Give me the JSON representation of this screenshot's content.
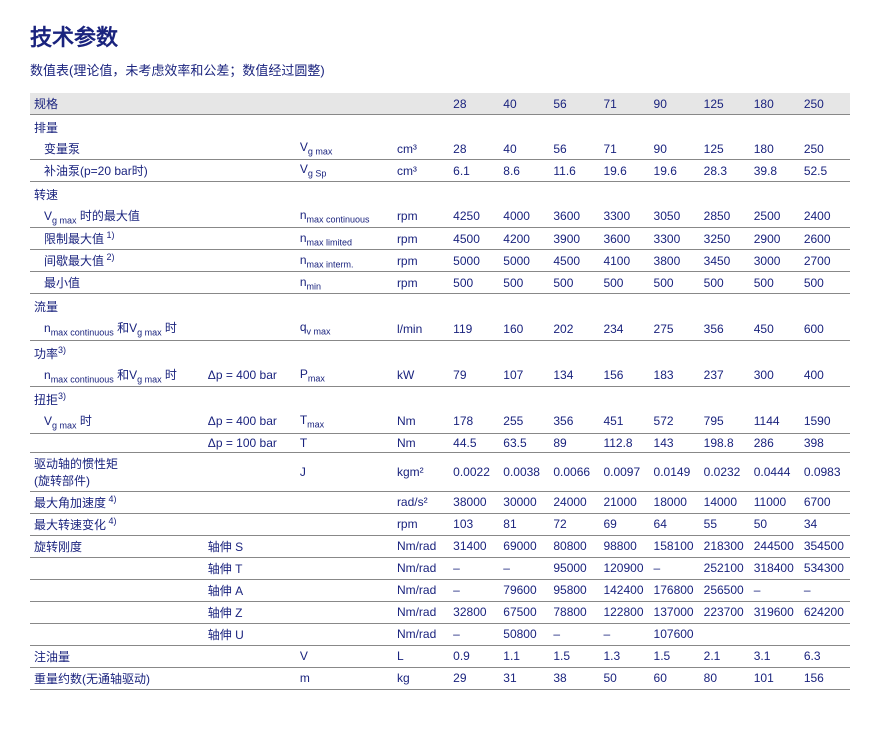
{
  "title": "技术参数",
  "subtitle": "数值表(理论值，未考虑效率和公差；数值经过圆整)",
  "header_label": "规格",
  "sizes": [
    "28",
    "40",
    "56",
    "71",
    "90",
    "125",
    "180",
    "250"
  ],
  "sections": {
    "disp": "排量",
    "speed": "转速",
    "flow": "流量",
    "power": "功率",
    "torque": "扭拒",
    "inertia1": "驱动轴的惯性矩",
    "inertia2": "(旋转部件)",
    "angacc": "最大角加速度",
    "dspeed": "最大转速变化",
    "stiff": "旋转刚度",
    "oil": "注油量",
    "weight": "重量约数(无通轴驱动)"
  },
  "rows": {
    "disp_var": {
      "label": "变量泵",
      "cond": "",
      "sym": "V_g max",
      "unit": "cm³",
      "vals": [
        "28",
        "40",
        "56",
        "71",
        "90",
        "125",
        "180",
        "250"
      ]
    },
    "disp_boost": {
      "label": "补油泵(p=20 bar时)",
      "cond": "",
      "sym": "V_g Sp",
      "unit": "cm³",
      "vals": [
        "6.1",
        "8.6",
        "11.6",
        "19.6",
        "19.6",
        "28.3",
        "39.8",
        "52.5"
      ]
    },
    "sp_cont": {
      "label": "V_g max 时的最大值",
      "cond": "",
      "sym": "n_max continuous",
      "unit": "rpm",
      "vals": [
        "4250",
        "4000",
        "3600",
        "3300",
        "3050",
        "2850",
        "2500",
        "2400"
      ]
    },
    "sp_lim": {
      "label": "限制最大值",
      "sup": " 1)",
      "cond": "",
      "sym": "n_max limited",
      "unit": "rpm",
      "vals": [
        "4500",
        "4200",
        "3900",
        "3600",
        "3300",
        "3250",
        "2900",
        "2600"
      ]
    },
    "sp_int": {
      "label": "间歇最大值",
      "sup": " 2)",
      "cond": "",
      "sym": "n_max interm.",
      "unit": "rpm",
      "vals": [
        "5000",
        "5000",
        "4500",
        "4100",
        "3800",
        "3450",
        "3000",
        "2700"
      ]
    },
    "sp_min": {
      "label": "最小值",
      "cond": "",
      "sym": "n_min",
      "unit": "rpm",
      "vals": [
        "500",
        "500",
        "500",
        "500",
        "500",
        "500",
        "500",
        "500"
      ]
    },
    "flow_q": {
      "label": "n_max continuous 和V_g max 时",
      "cond": "",
      "sym": "q_v max",
      "unit": "l/min",
      "vals": [
        "119",
        "160",
        "202",
        "234",
        "275",
        "356",
        "450",
        "600"
      ]
    },
    "power_p": {
      "label": "n_max continuous 和V_g max 时",
      "cond": "Δp = 400 bar",
      "sym": "P_max",
      "unit": "kW",
      "vals": [
        "79",
        "107",
        "134",
        "156",
        "183",
        "237",
        "300",
        "400"
      ]
    },
    "torque_t1": {
      "label": "V_g max 时",
      "cond": "Δp = 400 bar",
      "sym": "T_max",
      "unit": "Nm",
      "vals": [
        "178",
        "255",
        "356",
        "451",
        "572",
        "795",
        "1144",
        "1590"
      ]
    },
    "torque_t2": {
      "label": "",
      "cond": "Δp = 100 bar",
      "sym": "T",
      "unit": "Nm",
      "vals": [
        "44.5",
        "63.5",
        "89",
        "112.8",
        "143",
        "198.8",
        "286",
        "398"
      ]
    },
    "inertia": {
      "label": "",
      "cond": "",
      "sym": "J",
      "unit": "kgm²",
      "vals": [
        "0.0022",
        "0.0038",
        "0.0066",
        "0.0097",
        "0.0149",
        "0.0232",
        "0.0444",
        "0.0983"
      ]
    },
    "angacc": {
      "label": "",
      "sup": " 4)",
      "cond": "",
      "sym": "",
      "unit": "rad/s²",
      "vals": [
        "38000",
        "30000",
        "24000",
        "21000",
        "18000",
        "14000",
        "11000",
        "6700"
      ]
    },
    "dspeed": {
      "label": "",
      "sup": " 4)",
      "cond": "",
      "sym": "",
      "unit": "rpm",
      "vals": [
        "103",
        "81",
        "72",
        "69",
        "64",
        "55",
        "50",
        "34"
      ]
    },
    "stiff_s": {
      "label": "",
      "cond": "轴伸 S",
      "sym": "",
      "unit": "Nm/rad",
      "vals": [
        "31400",
        "69000",
        "80800",
        "98800",
        "158100",
        "218300",
        "244500",
        "354500"
      ]
    },
    "stiff_t": {
      "label": "",
      "cond": "轴伸 T",
      "sym": "",
      "unit": "Nm/rad",
      "vals": [
        "–",
        "–",
        "95000",
        "120900",
        "–",
        "252100",
        "318400",
        "534300"
      ]
    },
    "stiff_a": {
      "label": "",
      "cond": "轴伸 A",
      "sym": "",
      "unit": "Nm/rad",
      "vals": [
        "–",
        "79600",
        "95800",
        "142400",
        "176800",
        "256500",
        "–",
        "–"
      ]
    },
    "stiff_z": {
      "label": "",
      "cond": "轴伸 Z",
      "sym": "",
      "unit": "Nm/rad",
      "vals": [
        "32800",
        "67500",
        "78800",
        "122800",
        "137000",
        "223700",
        "319600",
        "624200"
      ]
    },
    "stiff_u": {
      "label": "",
      "cond": "轴伸 U",
      "sym": "",
      "unit": "Nm/rad",
      "vals": [
        "–",
        "50800",
        "–",
        "–",
        "107600",
        "",
        "",
        ""
      ]
    },
    "oil": {
      "label": "",
      "cond": "",
      "sym": "V",
      "unit": "L",
      "vals": [
        "0.9",
        "1.1",
        "1.5",
        "1.3",
        "1.5",
        "2.1",
        "3.1",
        "6.3"
      ]
    },
    "weight": {
      "label": "",
      "cond": "",
      "sym": "m",
      "unit": "kg",
      "vals": [
        "29",
        "31",
        "38",
        "50",
        "60",
        "80",
        "101",
        "156"
      ]
    }
  },
  "sup3": "3)"
}
